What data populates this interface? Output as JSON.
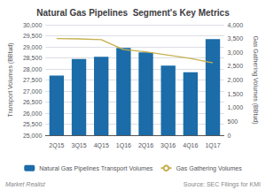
{
  "chart_data": {
    "type": "bar",
    "title": "Natural Gas Pipelines  Segment's Key Metrics",
    "categories": [
      "2Q15",
      "3Q15",
      "4Q15",
      "1Q16",
      "2Q16",
      "3Q16",
      "4Q16",
      "1Q17"
    ],
    "series": [
      {
        "name": "Natural Gas Pipelines Transport Volumes",
        "type": "bar",
        "color": "#1b6ca8",
        "values": [
          27700,
          28450,
          28550,
          28950,
          28750,
          28150,
          27850,
          29350
        ]
      },
      {
        "name": "Gas Gathering Volumes",
        "type": "line",
        "color": "#c8b050",
        "axis": "y2",
        "marker": "none",
        "values": [
          3500,
          3490,
          3460,
          3100,
          3020,
          2900,
          2780,
          2620
        ]
      }
    ],
    "ylabel": "Transport Volumes (BBtud)",
    "y2label": "Gas Gathering Volumes (BBtud)",
    "ylim": [
      25000,
      30000
    ],
    "yticks": [
      {
        "value": 25000,
        "label": "25,000"
      },
      {
        "value": 25500,
        "label": "25,500"
      },
      {
        "value": 26000,
        "label": "26,000"
      },
      {
        "value": 26500,
        "label": "26,500"
      },
      {
        "value": 27000,
        "label": "27,000"
      },
      {
        "value": 27500,
        "label": "27,500"
      },
      {
        "value": 28000,
        "label": "28,000"
      },
      {
        "value": 28500,
        "label": "28,500"
      },
      {
        "value": 29000,
        "label": "29,000"
      },
      {
        "value": 29500,
        "label": "29,500"
      },
      {
        "value": 30000,
        "label": "30,000"
      }
    ],
    "y2lim": [
      0,
      4000
    ],
    "y2ticks": [
      0,
      500,
      {
        "value": 1000,
        "label": "1,000"
      },
      {
        "value": 1500,
        "label": "1,500"
      },
      {
        "value": 2000,
        "label": "2,000"
      },
      {
        "value": 2500,
        "label": "2,500"
      },
      {
        "value": 3000,
        "label": "3,000"
      },
      {
        "value": 3500,
        "label": "3,500"
      },
      {
        "value": 4000,
        "label": "4,000"
      }
    ],
    "grid": true,
    "legend": "bottom",
    "annotations": [
      "Market Realist",
      "Source: SEC Filings for KMI"
    ]
  }
}
